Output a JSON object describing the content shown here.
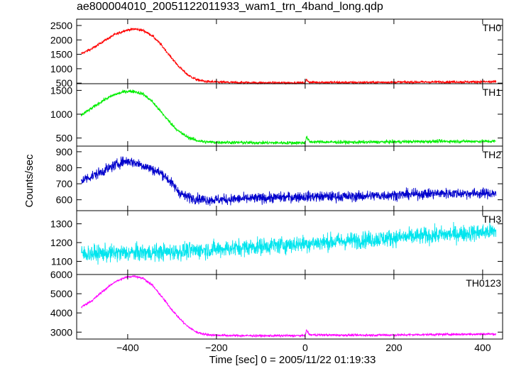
{
  "chart_data": {
    "type": "line",
    "title": "ae800004010_20051122011933_wam1_trn_4band_long.qdp",
    "xlabel": "Time [sec] 0 = 2005/11/22 01:19:33",
    "ylabel": "Counts/sec",
    "xlim": [
      -515,
      445
    ],
    "xticks": [
      -400,
      -200,
      0,
      200,
      400
    ],
    "xtick_labels": [
      "−400",
      "−200",
      "0",
      "200",
      "400"
    ],
    "grid": false,
    "panels": [
      {
        "name": "TH0",
        "color": "#ff0000",
        "ylim": [
          480,
          2720
        ],
        "yticks": [
          500,
          1000,
          1500,
          2000,
          2500
        ],
        "ytick_labels": [
          "500",
          "1000",
          "1500",
          "2000",
          "2500"
        ],
        "series": [
          {
            "name": "TH0",
            "x": [
              -505,
              -480,
              -455,
              -430,
              -405,
              -385,
              -365,
              -345,
              -325,
              -305,
              -285,
              -265,
              -245,
              -225,
              -205,
              -185,
              -160,
              -100,
              0,
              3,
              10,
              100,
              200,
              300,
              400,
              430
            ],
            "y": [
              1520,
              1700,
              1950,
              2180,
              2330,
              2380,
              2330,
              2150,
              1840,
              1450,
              1080,
              790,
              620,
              560,
              540,
              530,
              520,
              510,
              510,
              620,
              530,
              520,
              530,
              540,
              545,
              545
            ],
            "noise": 45
          }
        ]
      },
      {
        "name": "TH1",
        "color": "#00ee00",
        "ylim": [
          330,
          1640
        ],
        "yticks": [
          500,
          1000,
          1500
        ],
        "ytick_labels": [
          "500",
          "1000",
          "1500"
        ],
        "series": [
          {
            "name": "TH1",
            "x": [
              -505,
              -480,
              -455,
              -430,
              -405,
              -385,
              -365,
              -345,
              -325,
              -305,
              -285,
              -265,
              -245,
              -225,
              -200,
              -100,
              0,
              3,
              10,
              100,
              200,
              300,
              400,
              430
            ],
            "y": [
              980,
              1130,
              1290,
              1410,
              1480,
              1480,
              1420,
              1270,
              1050,
              830,
              640,
              520,
              450,
              420,
              410,
              400,
              400,
              520,
              420,
              410,
              420,
              430,
              430,
              430
            ],
            "noise": 35
          }
        ]
      },
      {
        "name": "TH2",
        "color": "#0000cc",
        "ylim": [
          532,
          935
        ],
        "yticks": [
          600,
          700,
          800,
          900
        ],
        "ytick_labels": [
          "600",
          "700",
          "800",
          "900"
        ],
        "series": [
          {
            "name": "TH2",
            "x": [
              -505,
              -470,
              -440,
              -410,
              -395,
              -370,
              -345,
              -320,
              -300,
              -285,
              -270,
              -250,
              -225,
              -200,
              -100,
              0,
              100,
              200,
              300,
              400,
              430
            ],
            "y": [
              720,
              760,
              800,
              840,
              840,
              820,
              790,
              760,
              700,
              650,
              620,
              610,
              600,
              600,
              610,
              620,
              620,
              630,
              640,
              640,
              640
            ],
            "noise": 32
          }
        ]
      },
      {
        "name": "TH3",
        "color": "#00e5ee",
        "ylim": [
          1030,
          1370
        ],
        "yticks": [
          1100,
          1200,
          1300
        ],
        "ytick_labels": [
          "1100",
          "1200",
          "1300"
        ],
        "series": [
          {
            "name": "TH3",
            "x": [
              -505,
              -400,
              -300,
              -200,
              -100,
              0,
              100,
              200,
              300,
              400,
              430
            ],
            "y": [
              1140,
              1145,
              1150,
              1165,
              1180,
              1195,
              1210,
              1225,
              1240,
              1255,
              1260
            ],
            "noise": 45
          }
        ]
      },
      {
        "name": "TH0123",
        "color": "#ff00ff",
        "ylim": [
          2640,
          6000
        ],
        "yticks": [
          3000,
          4000,
          5000,
          6000
        ],
        "ytick_labels": [
          "3000",
          "4000",
          "5000",
          "6000"
        ],
        "series": [
          {
            "name": "TH0123",
            "x": [
              -505,
              -480,
              -455,
              -430,
              -405,
              -385,
              -365,
              -345,
              -325,
              -305,
              -285,
              -265,
              -245,
              -225,
              -205,
              -160,
              -100,
              0,
              3,
              10,
              100,
              200,
              300,
              400,
              430
            ],
            "y": [
              4300,
              4650,
              5150,
              5600,
              5850,
              5920,
              5800,
              5450,
              4900,
              4300,
              3750,
              3300,
              3000,
              2880,
              2840,
              2820,
              2810,
              2820,
              3100,
              2860,
              2840,
              2850,
              2880,
              2900,
              2900
            ],
            "noise": 60
          }
        ]
      }
    ]
  }
}
